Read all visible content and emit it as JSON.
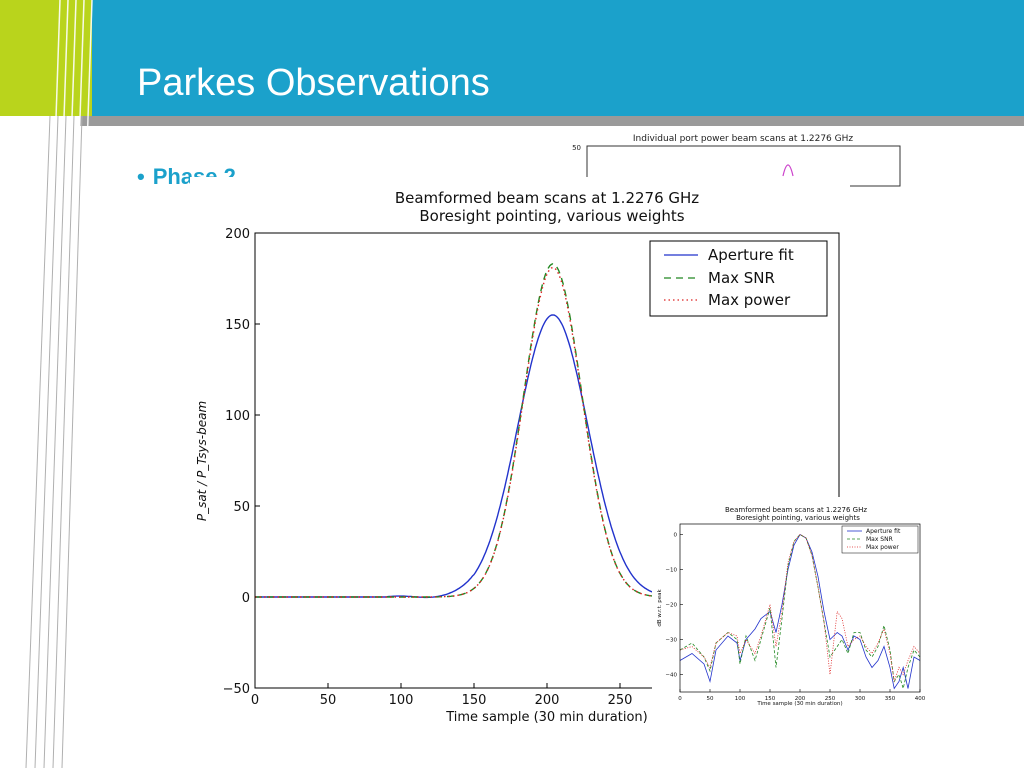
{
  "slide": {
    "title": "Parkes Observations",
    "bullet": "Phase 2",
    "banner_color": "#1ba1cb",
    "accent_color": "#b9d41c",
    "divider_color": "#9a9a9a"
  },
  "chart_data": [
    {
      "type": "line",
      "title": "Individual port power beam scans at 1.2276 GHz",
      "ylabel": "",
      "xlabel": "",
      "yticks": [
        50
      ],
      "note": "partially visible; mostly covered by main chart"
    },
    {
      "type": "line",
      "title": "Beamformed beam scans at 1.2276 GHz",
      "subtitle": "Boresight pointing, various weights",
      "xlabel": "Time sample (30 min duration)",
      "ylabel": "P_sat / P_Tsys-beam",
      "ylim": [
        -50,
        200
      ],
      "xlim": [
        0,
        400
      ],
      "yticks": [
        200,
        150,
        100,
        50,
        0,
        -50
      ],
      "ytick_labels": [
        "200",
        "150",
        "100",
        "50",
        "0",
        "−50"
      ],
      "xticks": [
        0,
        50,
        100,
        150,
        200,
        250
      ],
      "xtick_labels": [
        "0",
        "50",
        "100",
        "150",
        "200",
        "250"
      ],
      "legend_position": "top-right",
      "series": [
        {
          "name": "Aperture fit",
          "color": "#2233cc",
          "style": "solid",
          "peak_x": 204,
          "peak_y": 155,
          "width": 24
        },
        {
          "name": "Max SNR",
          "color": "#228822",
          "style": "dashed",
          "peak_x": 204,
          "peak_y": 183,
          "width": 20
        },
        {
          "name": "Max power",
          "color": "#dd2222",
          "style": "dotted",
          "peak_x": 204,
          "peak_y": 181,
          "width": 20
        }
      ]
    },
    {
      "type": "line",
      "title": "Beamformed beam scans at 1.2276 GHz",
      "subtitle": "Boresight pointing, various weights",
      "xlabel": "Time sample (30 min duration)",
      "ylabel": "dB w.r.t. peak",
      "ylim": [
        -45,
        3
      ],
      "xlim": [
        0,
        400
      ],
      "yticks": [
        0,
        -10,
        -20,
        -30,
        -40
      ],
      "ytick_labels": [
        "0",
        "−10",
        "−20",
        "−30",
        "−40"
      ],
      "xticks": [
        0,
        50,
        100,
        150,
        200,
        250,
        300,
        350,
        400
      ],
      "xtick_labels": [
        "0",
        "50",
        "100",
        "150",
        "200",
        "250",
        "300",
        "350",
        "400"
      ],
      "legend_position": "top-right",
      "series": [
        {
          "name": "Aperture fit",
          "color": "#2233cc",
          "style": "solid",
          "x": [
            0,
            20,
            40,
            50,
            60,
            80,
            95,
            100,
            110,
            125,
            135,
            150,
            160,
            170,
            180,
            190,
            200,
            210,
            220,
            230,
            240,
            250,
            262,
            270,
            280,
            290,
            300,
            310,
            320,
            330,
            340,
            350,
            357,
            365,
            372,
            380,
            390,
            400
          ],
          "y": [
            -36,
            -34,
            -37,
            -42,
            -33,
            -29,
            -31,
            -36,
            -30,
            -27,
            -24,
            -22,
            -28,
            -20,
            -10,
            -3,
            0,
            -1,
            -5,
            -12,
            -22,
            -30,
            -28,
            -29,
            -33,
            -29,
            -30,
            -35,
            -38,
            -36,
            -32,
            -38,
            -44,
            -42,
            -38,
            -44,
            -35,
            -36
          ]
        },
        {
          "name": "Max SNR",
          "color": "#228822",
          "style": "dashed",
          "x": [
            0,
            20,
            40,
            50,
            60,
            80,
            95,
            100,
            110,
            125,
            135,
            150,
            160,
            170,
            180,
            190,
            200,
            210,
            220,
            230,
            240,
            250,
            262,
            270,
            280,
            290,
            300,
            310,
            320,
            330,
            340,
            350,
            357,
            365,
            372,
            380,
            390,
            400
          ],
          "y": [
            -33,
            -31,
            -35,
            -39,
            -31,
            -28,
            -30,
            -37,
            -29,
            -36,
            -30,
            -21,
            -38,
            -24,
            -9,
            -2,
            0,
            -1,
            -6,
            -15,
            -25,
            -35,
            -32,
            -30,
            -34,
            -28,
            -28,
            -33,
            -35,
            -32,
            -26,
            -33,
            -42,
            -40,
            -44,
            -38,
            -33,
            -35
          ]
        },
        {
          "name": "Max power",
          "color": "#dd2222",
          "style": "dotted",
          "x": [
            0,
            20,
            40,
            50,
            60,
            80,
            95,
            100,
            110,
            125,
            135,
            150,
            160,
            170,
            180,
            190,
            200,
            210,
            220,
            230,
            240,
            250,
            262,
            270,
            280,
            290,
            300,
            310,
            320,
            330,
            340,
            350,
            357,
            365,
            372,
            380,
            390,
            400
          ],
          "y": [
            -33,
            -32,
            -35,
            -38,
            -31,
            -28,
            -29,
            -34,
            -30,
            -34,
            -29,
            -20,
            -32,
            -22,
            -8,
            -2,
            0,
            -1,
            -6,
            -15,
            -25,
            -40,
            -22,
            -24,
            -32,
            -30,
            -29,
            -32,
            -34,
            -31,
            -27,
            -34,
            -42,
            -38,
            -40,
            -36,
            -32,
            -34
          ]
        }
      ]
    }
  ]
}
